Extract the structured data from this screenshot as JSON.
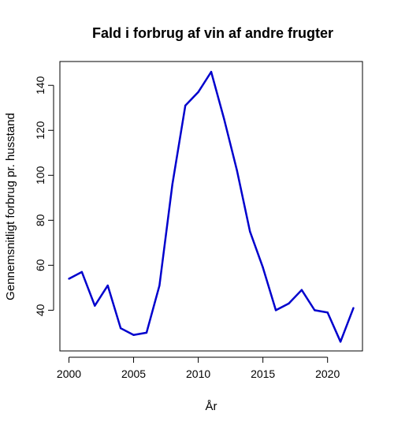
{
  "chart_data": {
    "type": "line",
    "title": "Fald i forbrug af vin af andre frugter",
    "xlabel": "År",
    "ylabel": "Gennemsnitligt forbrug pr. husstand",
    "xlim": [
      1999.3,
      2022.7
    ],
    "ylim": [
      21.9,
      150.6
    ],
    "xticks": [
      2000,
      2005,
      2010,
      2015,
      2020
    ],
    "yticks": [
      40,
      60,
      80,
      100,
      120,
      140
    ],
    "grid": false,
    "legend": "none",
    "series_color": "#0000CD",
    "x": [
      2000,
      2001,
      2002,
      2003,
      2004,
      2005,
      2006,
      2007,
      2008,
      2009,
      2010,
      2011,
      2012,
      2013,
      2014,
      2015,
      2016,
      2017,
      2018,
      2019,
      2020,
      2021,
      2022
    ],
    "y": [
      54,
      57,
      42,
      51,
      32,
      29,
      30,
      51,
      96,
      131,
      137,
      146,
      125,
      102,
      75,
      59,
      40,
      43,
      49,
      40,
      39,
      26,
      41
    ]
  }
}
